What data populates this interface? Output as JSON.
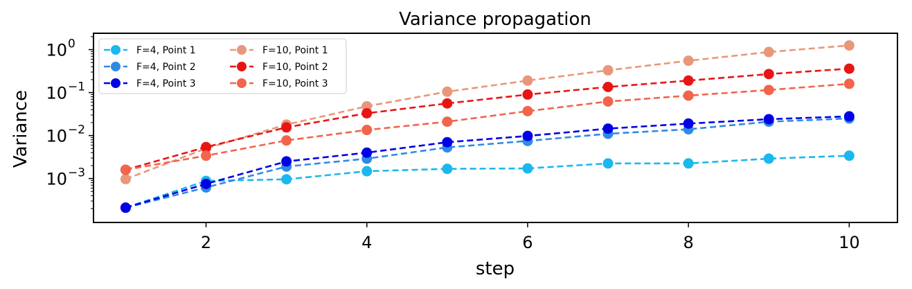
{
  "chart_data": {
    "type": "line",
    "title": "Variance propagation",
    "xlabel": "step",
    "ylabel": "Variance",
    "x": [
      1,
      2,
      3,
      4,
      5,
      6,
      7,
      8,
      9,
      10
    ],
    "xlim": [
      0.6,
      10.6
    ],
    "ylim": [
      9.5e-05,
      2.4
    ],
    "yscale": "log",
    "xticks": [
      2,
      4,
      6,
      8,
      10
    ],
    "yticks": [
      {
        "value": 0.001,
        "base": "10",
        "exp": "−3"
      },
      {
        "value": 0.01,
        "base": "10",
        "exp": "−2"
      },
      {
        "value": 0.1,
        "base": "10",
        "exp": "−1"
      },
      {
        "value": 1,
        "base": "10",
        "exp": "0"
      }
    ],
    "grid": false,
    "legend_position": "upper-left",
    "legend_columns": 2,
    "series": [
      {
        "name": "F=4, Point 1",
        "color": "#1ab8ee",
        "values": [
          0.00021,
          0.00088,
          0.00096,
          0.00148,
          0.00168,
          0.00172,
          0.00225,
          0.00225,
          0.0029,
          0.0034
        ]
      },
      {
        "name": "F=4, Point 2",
        "color": "#2f8ae6",
        "values": [
          0.00021,
          0.00062,
          0.0019,
          0.0029,
          0.0053,
          0.0075,
          0.011,
          0.014,
          0.021,
          0.025
        ]
      },
      {
        "name": "F=4, Point 3",
        "color": "#0000e6",
        "values": [
          0.00021,
          0.00075,
          0.0025,
          0.004,
          0.007,
          0.0098,
          0.0145,
          0.019,
          0.024,
          0.028
        ]
      },
      {
        "name": "F=10, Point 1",
        "color": "#e9977a",
        "values": [
          0.00097,
          0.005,
          0.018,
          0.048,
          0.105,
          0.19,
          0.33,
          0.55,
          0.88,
          1.25
        ]
      },
      {
        "name": "F=10, Point 2",
        "color": "#e81515",
        "values": [
          0.0016,
          0.0054,
          0.0155,
          0.033,
          0.056,
          0.09,
          0.135,
          0.19,
          0.27,
          0.36
        ]
      },
      {
        "name": "F=10, Point 3",
        "color": "#f2644b",
        "values": [
          0.0016,
          0.0034,
          0.0077,
          0.0135,
          0.021,
          0.037,
          0.062,
          0.085,
          0.115,
          0.16
        ]
      }
    ]
  }
}
